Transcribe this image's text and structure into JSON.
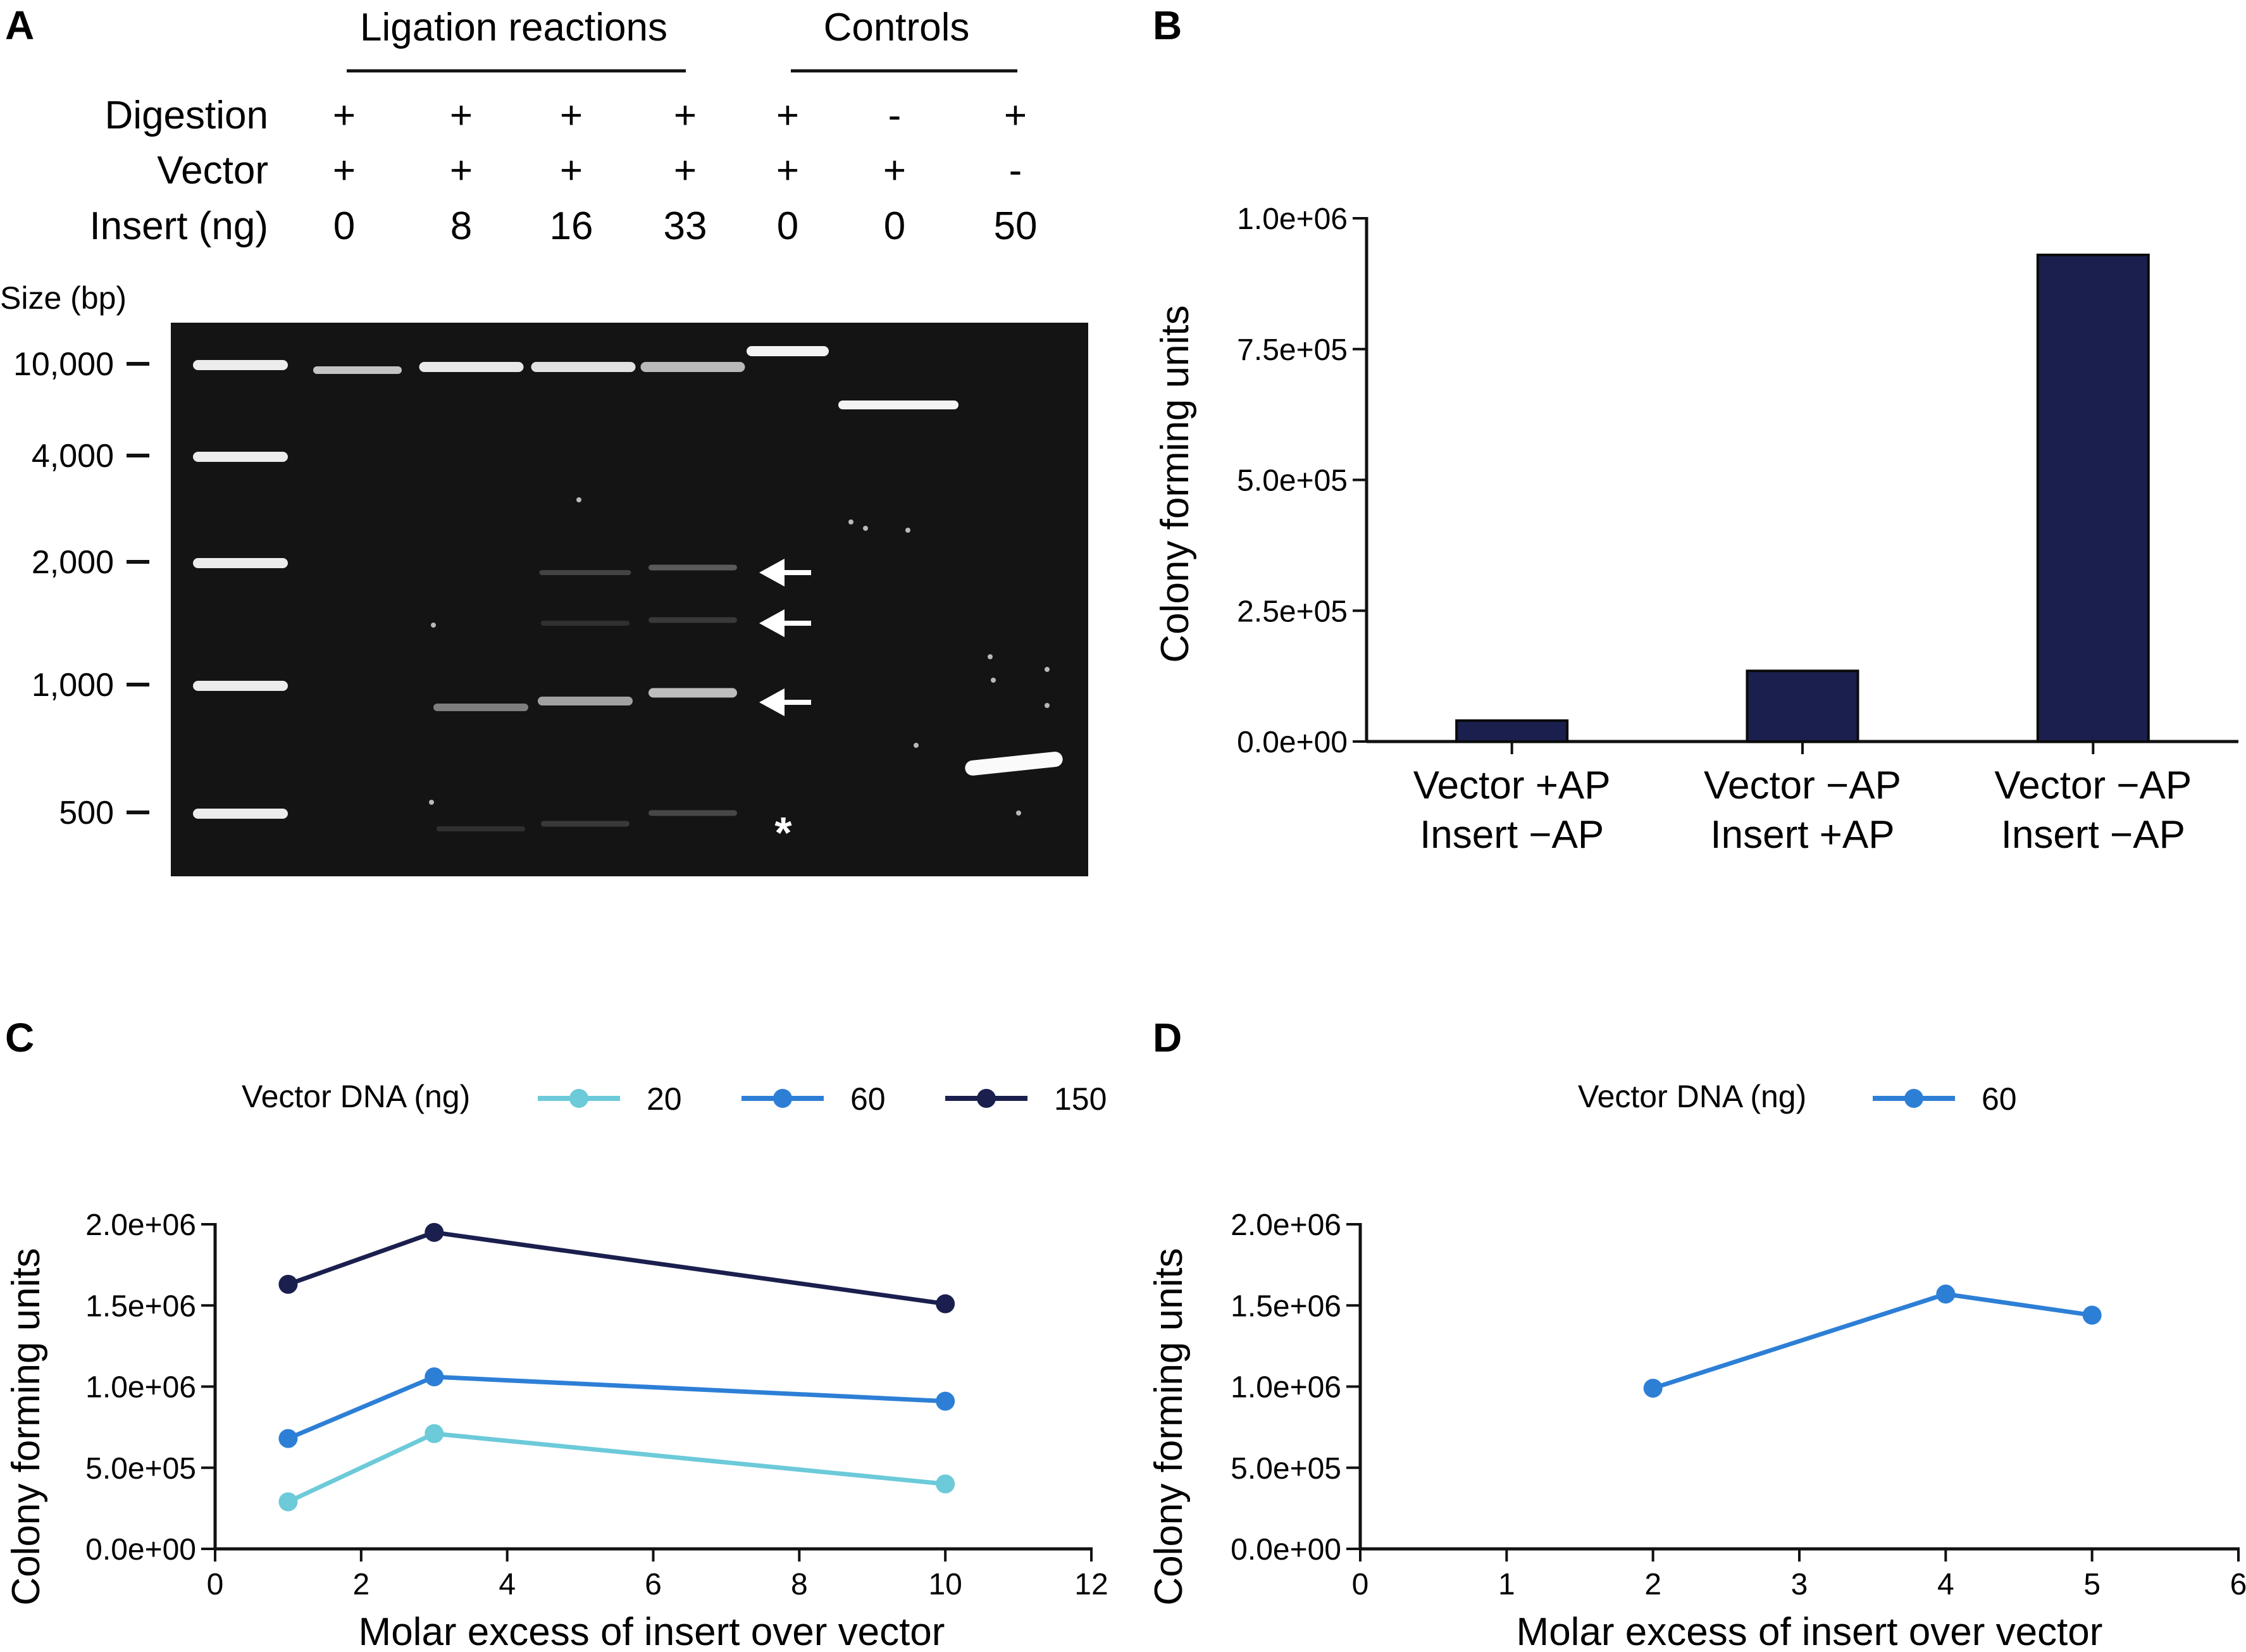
{
  "panel_a": {
    "letter": "A",
    "group_headers": [
      "Ligation reactions",
      "Controls"
    ],
    "row_labels": [
      "Digestion",
      "Vector",
      "Insert (ng)"
    ],
    "lanes": [
      {
        "digestion": "+",
        "vector": "+",
        "insert": "0"
      },
      {
        "digestion": "+",
        "vector": "+",
        "insert": "8"
      },
      {
        "digestion": "+",
        "vector": "+",
        "insert": "16"
      },
      {
        "digestion": "+",
        "vector": "+",
        "insert": "33"
      },
      {
        "digestion": "+",
        "vector": "+",
        "insert": "0"
      },
      {
        "digestion": "-",
        "vector": "+",
        "insert": "0"
      },
      {
        "digestion": "+",
        "vector": "-",
        "insert": "50"
      }
    ],
    "size_title": "Size (bp)",
    "size_markers": [
      "10,000",
      "4,000",
      "2,000",
      "1,000",
      "500"
    ],
    "asterisk": "*"
  },
  "chart_data": [
    {
      "panel": "B",
      "type": "bar",
      "categories": [
        [
          "Vector +AP",
          "Insert −AP"
        ],
        [
          "Vector −AP",
          "Insert +AP"
        ],
        [
          "Vector −AP",
          "Insert −AP"
        ]
      ],
      "values": [
        40000,
        135000,
        930000
      ],
      "ylabel": "Colony forming units",
      "ylim": [
        0,
        1000000
      ],
      "yticks": [
        0,
        250000,
        500000,
        750000,
        1000000
      ],
      "ytick_labels": [
        "0.0e+00",
        "2.5e+05",
        "5.0e+05",
        "7.5e+05",
        "1.0e+06"
      ],
      "color": "#1b1f4e"
    },
    {
      "panel": "C",
      "type": "line",
      "xlabel": "Molar excess of insert over vector",
      "ylabel": "Colony forming units",
      "xlim": [
        0,
        12
      ],
      "ylim": [
        0,
        2000000
      ],
      "xticks": [
        0,
        2,
        4,
        6,
        8,
        10,
        12
      ],
      "xtick_labels": [
        "0",
        "2",
        "4",
        "6",
        "8",
        "10",
        "12"
      ],
      "yticks": [
        0,
        500000,
        1000000,
        1500000,
        2000000
      ],
      "ytick_labels": [
        "0.0e+00",
        "5.0e+05",
        "1.0e+06",
        "1.5e+06",
        "2.0e+06"
      ],
      "legend_title": "Vector DNA (ng)",
      "legend_position": "top",
      "series": [
        {
          "name": "20",
          "color": "#6ccad9",
          "x": [
            1,
            3,
            10
          ],
          "y": [
            290000,
            710000,
            400000
          ]
        },
        {
          "name": "60",
          "color": "#2d7fd6",
          "x": [
            1,
            3,
            10
          ],
          "y": [
            680000,
            1060000,
            910000
          ]
        },
        {
          "name": "150",
          "color": "#1b1f4e",
          "x": [
            1,
            3,
            10
          ],
          "y": [
            1630000,
            1950000,
            1510000
          ]
        }
      ]
    },
    {
      "panel": "D",
      "type": "line",
      "xlabel": "Molar excess of insert over vector",
      "ylabel": "Colony forming units",
      "xlim": [
        0,
        6
      ],
      "ylim": [
        0,
        2000000
      ],
      "xticks": [
        0,
        1,
        2,
        3,
        4,
        5,
        6
      ],
      "xtick_labels": [
        "0",
        "1",
        "2",
        "3",
        "4",
        "5",
        "6"
      ],
      "yticks": [
        0,
        500000,
        1000000,
        1500000,
        2000000
      ],
      "ytick_labels": [
        "0.0e+00",
        "5.0e+05",
        "1.0e+06",
        "1.5e+06",
        "2.0e+06"
      ],
      "legend_title": "Vector DNA (ng)",
      "legend_position": "top",
      "series": [
        {
          "name": "60",
          "color": "#2d7fd6",
          "x": [
            2,
            4,
            5
          ],
          "y": [
            990000,
            1570000,
            1440000
          ]
        }
      ]
    }
  ],
  "panel_letters": [
    "B",
    "C",
    "D"
  ]
}
